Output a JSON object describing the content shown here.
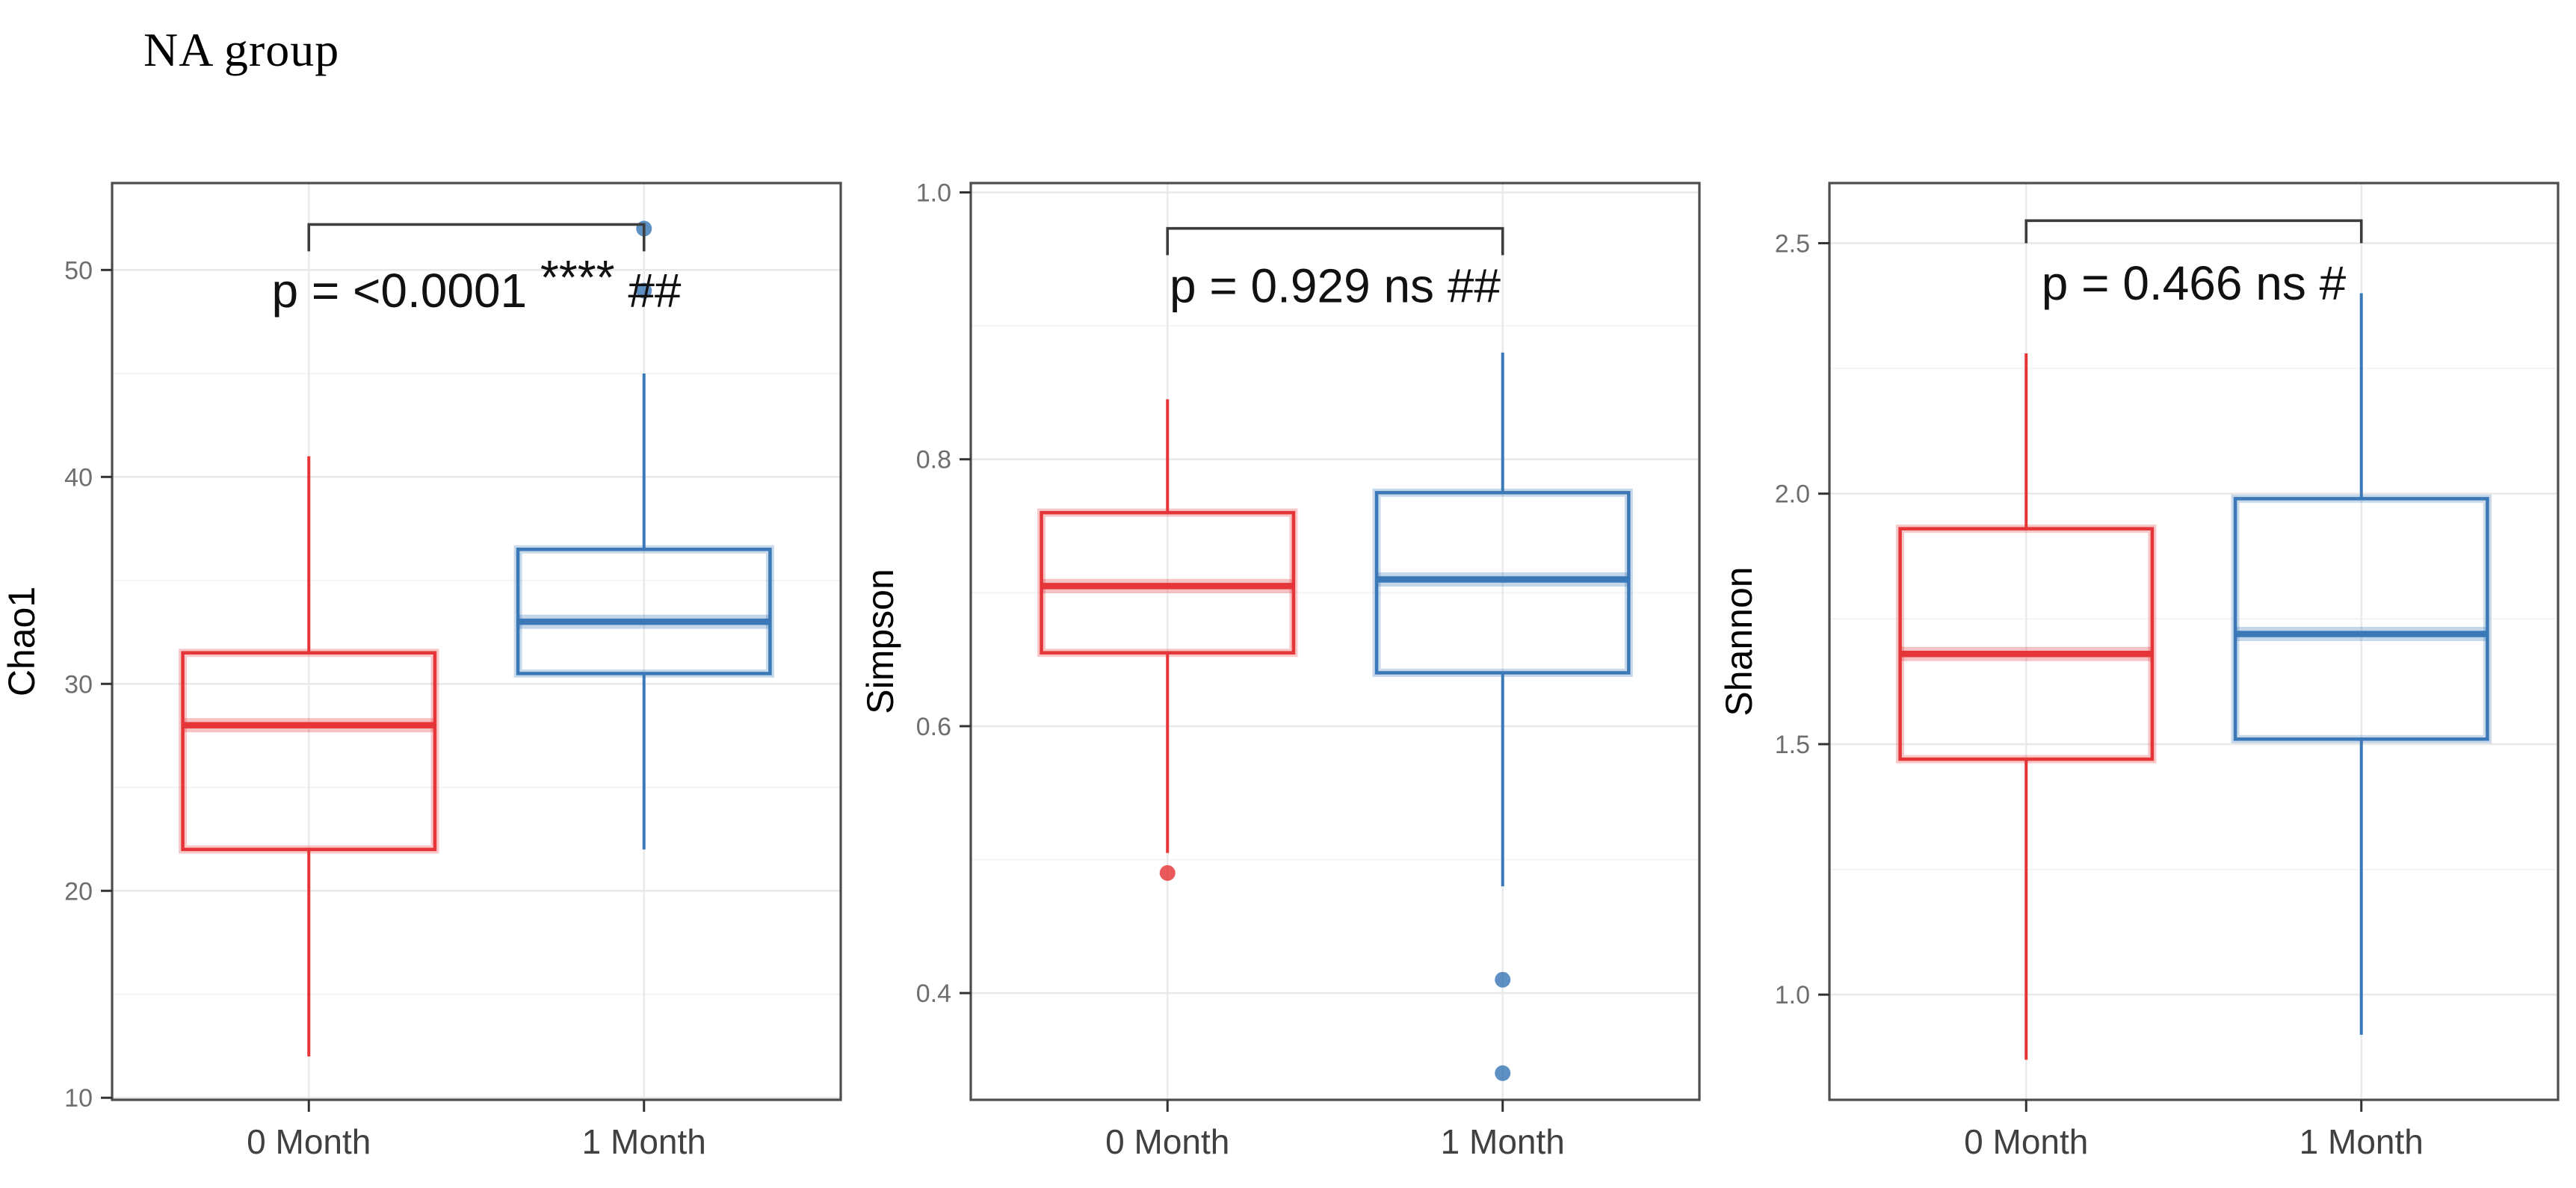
{
  "header": {
    "title": "NA group"
  },
  "colors": {
    "red": "#E53538",
    "blue": "#3B78B7",
    "grid_major": "#E9E9E9",
    "grid_minor": "#F4F4F4",
    "panel_border": "#4D4D4D",
    "tick_mark": "#333333",
    "y_tick_label": "#6E6E6E",
    "x_tick_label": "#404040",
    "axis_title": "#000000",
    "annotation_text": "#111111",
    "bracket": "#3C3C3C",
    "background": "#FFFFFF"
  },
  "chart_data": [
    {
      "type": "box",
      "ylabel": "Chao1",
      "categories": [
        "0 Month",
        "1 Month"
      ],
      "y_ticks": [
        10,
        20,
        30,
        40,
        50
      ],
      "y_tick_labels": [
        "10",
        "20",
        "30",
        "40",
        "50"
      ],
      "ylim": [
        9.9,
        54.2
      ],
      "grid": true,
      "legend": "none",
      "annotation": {
        "text": "p = <0.0001 **** ##",
        "y": 49.0,
        "bracket_y": 52.2,
        "bracket_drop": 1.3
      },
      "series": [
        {
          "name": "0 Month",
          "color_key": "red",
          "whisker_min": 12,
          "q1": 22,
          "median": 28,
          "q3": 31.5,
          "whisker_max": 41,
          "outliers": []
        },
        {
          "name": "1 Month",
          "color_key": "blue",
          "whisker_min": 22,
          "q1": 30.5,
          "median": 33,
          "q3": 36.5,
          "whisker_max": 45,
          "outliers": [
            49,
            52
          ]
        }
      ]
    },
    {
      "type": "box",
      "ylabel": "Simpson",
      "categories": [
        "0 Month",
        "1 Month"
      ],
      "y_ticks": [
        0.4,
        0.6,
        0.8,
        1.0
      ],
      "y_tick_labels": [
        "0.4",
        "0.6",
        "0.8",
        "1.0"
      ],
      "ylim": [
        0.32,
        1.007
      ],
      "grid": true,
      "legend": "none",
      "annotation": {
        "text": "p = 0.929 ns ##",
        "y": 0.93,
        "bracket_y": 0.973,
        "bracket_drop": 0.02
      },
      "series": [
        {
          "name": "0 Month",
          "color_key": "red",
          "whisker_min": 0.505,
          "q1": 0.655,
          "median": 0.705,
          "q3": 0.76,
          "whisker_max": 0.845,
          "outliers": [
            0.49
          ]
        },
        {
          "name": "1 Month",
          "color_key": "blue",
          "whisker_min": 0.48,
          "q1": 0.64,
          "median": 0.71,
          "q3": 0.775,
          "whisker_max": 0.88,
          "outliers": [
            0.41,
            0.34
          ]
        }
      ]
    },
    {
      "type": "box",
      "ylabel": "Shannon",
      "categories": [
        "0 Month",
        "1 Month"
      ],
      "y_ticks": [
        1.0,
        1.5,
        2.0,
        2.5
      ],
      "y_tick_labels": [
        "1.0",
        "1.5",
        "2.0",
        "2.5"
      ],
      "ylim": [
        0.79,
        2.62
      ],
      "grid": true,
      "legend": "none",
      "annotation": {
        "text": "p = 0.466 ns #",
        "y": 2.42,
        "bracket_y": 2.545,
        "bracket_drop": 0.045
      },
      "series": [
        {
          "name": "0 Month",
          "color_key": "red",
          "whisker_min": 0.87,
          "q1": 1.47,
          "median": 1.68,
          "q3": 1.93,
          "whisker_max": 2.28,
          "outliers": []
        },
        {
          "name": "1 Month",
          "color_key": "blue",
          "whisker_min": 0.92,
          "q1": 1.51,
          "median": 1.72,
          "q3": 1.99,
          "whisker_max": 2.4,
          "outliers": []
        }
      ]
    }
  ]
}
